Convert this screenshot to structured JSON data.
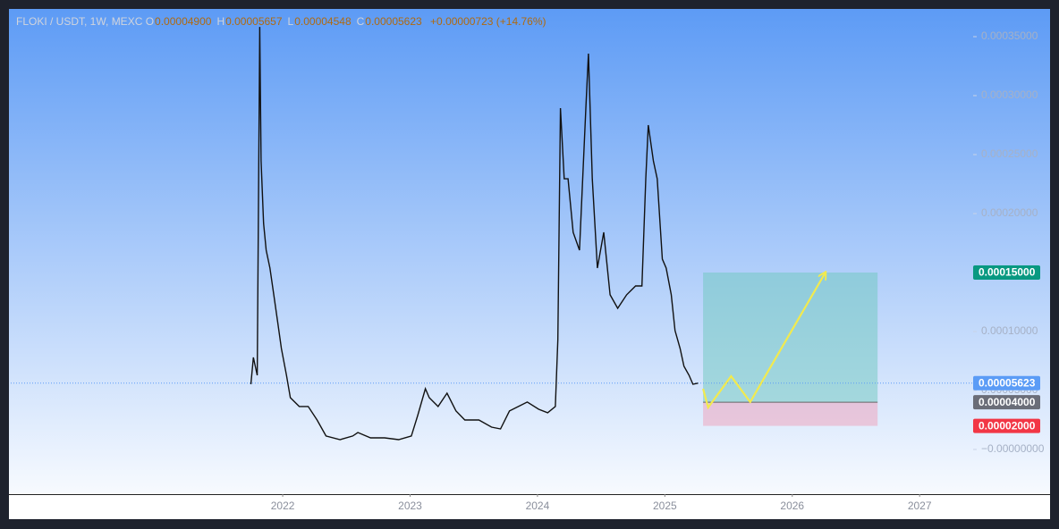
{
  "chart_data": {
    "type": "line",
    "header": {
      "symbol": "FLOKI / USDT, 1W, MEXC",
      "ohlc": [
        {
          "key": "O",
          "text": "0.00004900"
        },
        {
          "key": "H",
          "text": "0.00005657"
        },
        {
          "key": "L",
          "text": "0.00004548"
        },
        {
          "key": "C",
          "text": "0.00005623"
        }
      ],
      "change": "+0.00000723 (+14.76%)"
    },
    "xlim": [
      2019.865,
      2027.42
    ],
    "xticks": [
      2022,
      2023,
      2024,
      2025,
      2026,
      2027
    ],
    "ylim": [
      -3.79e-05,
      0.0003735
    ],
    "yticks": [
      {
        "value": 0,
        "label": "−0.00000000"
      },
      {
        "value": 5e-05,
        "label": "0.00005000"
      },
      {
        "value": 0.0001,
        "label": "0.00010000"
      },
      {
        "value": 0.00015,
        "label": "0.00015000"
      },
      {
        "value": 0.0002,
        "label": "0.00020000"
      },
      {
        "value": 0.00025,
        "label": "0.00025000"
      },
      {
        "value": 0.0003,
        "label": "0.00030000"
      },
      {
        "value": 0.00035,
        "label": "0.00035000"
      }
    ],
    "series": [
      {
        "color": "#111111",
        "x": [
          2021.75,
          2021.77,
          2021.8,
          2021.82,
          2021.83,
          2021.85,
          2021.87,
          2021.9,
          2021.93,
          2021.96,
          2021.99,
          2022.03,
          2022.06,
          2022.13,
          2022.2,
          2022.27,
          2022.34,
          2022.45,
          2022.55,
          2022.59,
          2022.69,
          2022.8,
          2022.91,
          2023.01,
          2023.06,
          2023.12,
          2023.15,
          2023.22,
          2023.29,
          2023.36,
          2023.43,
          2023.54,
          2023.64,
          2023.71,
          2023.78,
          2023.85,
          2023.92,
          2024.01,
          2024.08,
          2024.14,
          2024.16,
          2024.18,
          2024.21,
          2024.24,
          2024.28,
          2024.33,
          2024.38,
          2024.4,
          2024.43,
          2024.47,
          2024.52,
          2024.57,
          2024.63,
          2024.7,
          2024.77,
          2024.82,
          2024.85,
          2024.87,
          2024.91,
          2024.94,
          2024.98,
          2025.01,
          2025.05,
          2025.08,
          2025.12,
          2025.15,
          2025.19,
          2025.22,
          2025.26
        ],
        "values": [
          5.53e-05,
          7.8e-05,
          6.29e-05,
          0.0003583,
          0.0002447,
          0.0001917,
          0.0001689,
          0.0001538,
          0.0001311,
          0.0001083,
          8.56e-05,
          6.29e-05,
          4.39e-05,
          3.64e-05,
          3.64e-05,
          2.5e-05,
          1.14e-05,
          8.3e-06,
          1.14e-05,
          1.44e-05,
          9.8e-06,
          9.8e-06,
          8.3e-06,
          1.14e-05,
          2.88e-05,
          5.15e-05,
          4.39e-05,
          3.64e-05,
          4.77e-05,
          3.26e-05,
          2.5e-05,
          2.5e-05,
          1.89e-05,
          1.74e-05,
          3.26e-05,
          3.64e-05,
          4.02e-05,
          3.41e-05,
          3.11e-05,
          3.64e-05,
          9.32e-05,
          0.0002894,
          0.0002295,
          0.0002295,
          0.0001841,
          0.0001689,
          0.0002894,
          0.0003356,
          0.0002295,
          0.0001538,
          0.0001841,
          0.0001311,
          0.0001197,
          0.0001311,
          0.0001386,
          0.0001386,
          0.0002295,
          0.000275,
          0.0002447,
          0.0002295,
          0.0001614,
          0.0001538,
          0.0001311,
          0.0001008,
          8.56e-05,
          7.05e-05,
          6.29e-05,
          5.53e-05,
          5.62e-05
        ]
      }
    ],
    "last_price": {
      "value": 5.623e-05,
      "label": "0.00005623",
      "color": "#5b9cf6"
    },
    "position": {
      "x": [
        2025.3,
        2026.67
      ],
      "target": {
        "value": 0.00015,
        "label": "0.00015000",
        "color": "#089981"
      },
      "entry": {
        "value": 4e-05,
        "label": "0.00004000",
        "color": "#6a6d78"
      },
      "stop": {
        "value": 2e-05,
        "label": "0.00002000",
        "color": "#f23645"
      }
    },
    "projection": {
      "color": "#f2ea4e",
      "x": [
        2025.3,
        2025.34,
        2025.52,
        2025.67,
        2026.26
      ],
      "values": [
        5.15e-05,
        3.56e-05,
        6.21e-05,
        4.02e-05,
        0.00015
      ]
    }
  }
}
